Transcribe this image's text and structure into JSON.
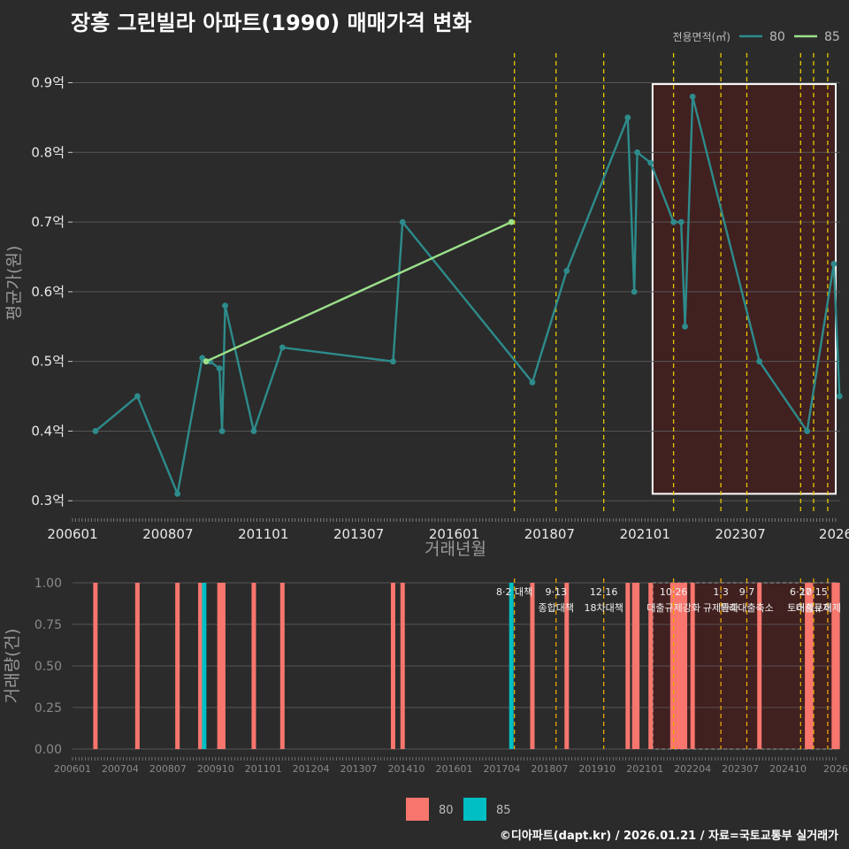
{
  "title": "장흥 그린빌라 아파트(1990) 매매가격 변화",
  "credit": "©디아파트(dapt.kr) / 2026.01.21 / 자료=국토교통부 실거래가",
  "colors": {
    "s80": "#2e8b8b",
    "s85": "#9be08a",
    "bar80": "#f8766d",
    "bar85": "#00bfc4",
    "policy": "#e8c800",
    "highlight": "#4a1e1e"
  },
  "chart_data": [
    {
      "type": "line",
      "title": "장흥 그린빌라 아파트(1990) 매매가격 변화",
      "xlabel": "거래년월",
      "ylabel": "평균가(원)",
      "ylim": [
        0.28,
        0.94
      ],
      "y_ticks": [
        0.3,
        0.4,
        0.5,
        0.6,
        0.7,
        0.8,
        0.9
      ],
      "y_tick_labels": [
        "0.3억",
        "0.4억",
        "0.5억",
        "0.6억",
        "0.7억",
        "0.8억",
        "0.9억"
      ],
      "x_ticks": [
        2006.0,
        2008.5,
        2011.0,
        2013.5,
        2016.0,
        2018.5,
        2021.0,
        2023.5,
        2026.0
      ],
      "x_tick_labels": [
        "200601",
        "200807",
        "201101",
        "201307",
        "201601",
        "201807",
        "202101",
        "202307",
        "2026"
      ],
      "legend_title": "전용면적(㎡)",
      "highlight": {
        "x0": 2021.2,
        "x1": 2026.0,
        "y0": 0.31,
        "y1": 0.898
      },
      "policy_lines": [
        2017.58,
        2018.67,
        2019.92,
        2021.75,
        2022.99,
        2023.67,
        2025.08,
        2025.42,
        2025.79
      ],
      "series": [
        {
          "name": "80",
          "points": [
            [
              2006.6,
              0.4
            ],
            [
              2007.7,
              0.45
            ],
            [
              2008.75,
              0.31
            ],
            [
              2009.4,
              0.505
            ],
            [
              2009.6,
              0.5
            ],
            [
              2009.85,
              0.49
            ],
            [
              2009.92,
              0.4
            ],
            [
              2010.0,
              0.58
            ],
            [
              2010.75,
              0.4
            ],
            [
              2011.5,
              0.52
            ],
            [
              2014.4,
              0.5
            ],
            [
              2014.65,
              0.7
            ],
            [
              2018.05,
              0.47
            ],
            [
              2018.95,
              0.63
            ],
            [
              2020.55,
              0.85
            ],
            [
              2020.72,
              0.6
            ],
            [
              2020.8,
              0.8
            ],
            [
              2021.15,
              0.785
            ],
            [
              2021.75,
              0.7
            ],
            [
              2021.95,
              0.7
            ],
            [
              2022.05,
              0.55
            ],
            [
              2022.25,
              0.88
            ],
            [
              2024.0,
              0.5
            ],
            [
              2025.25,
              0.4
            ],
            [
              2025.95,
              0.64
            ],
            [
              2026.1,
              0.45
            ]
          ]
        },
        {
          "name": "85",
          "points": [
            [
              2009.5,
              0.5
            ],
            [
              2017.5,
              0.7
            ]
          ]
        }
      ]
    },
    {
      "type": "bar",
      "xlabel": "",
      "ylabel": "거래량(건)",
      "ylim": [
        0,
        1.0
      ],
      "y_ticks": [
        0,
        0.25,
        0.5,
        0.75,
        1.0
      ],
      "y_tick_labels": [
        "0.00",
        "0.25",
        "0.50",
        "0.75",
        "1.00"
      ],
      "x_tick_labels": [
        "200601",
        "200704",
        "200807",
        "200910",
        "201101",
        "201204",
        "201307",
        "201410",
        "201601",
        "201704",
        "201807",
        "201910",
        "202101",
        "202204",
        "202307",
        "202410",
        "2026"
      ],
      "highlight": {
        "x0": 2021.2,
        "x1": 2026.0
      },
      "policy_lines": [
        2017.58,
        2018.67,
        2019.92,
        2021.75,
        2022.99,
        2023.67,
        2025.08,
        2025.42,
        2025.79
      ],
      "policy_labels": [
        {
          "x": 2017.58,
          "line1": "8·2 대책",
          "line2": ""
        },
        {
          "x": 2018.67,
          "line1": "9·13",
          "line2": "종합대책"
        },
        {
          "x": 2019.92,
          "line1": "12·16",
          "line2": "18차대책"
        },
        {
          "x": 2021.75,
          "line1": "10·26",
          "line2": "대출규제강화"
        },
        {
          "x": 2022.99,
          "line1": "1·3",
          "line2": "규제완화"
        },
        {
          "x": 2023.67,
          "line1": "9·7",
          "line2": "특례대출축소"
        },
        {
          "x": 2025.08,
          "line1": "6·27",
          "line2": "토허제"
        },
        {
          "x": 2025.42,
          "line1": "10·15",
          "line2": "대출규제"
        },
        {
          "x": 2025.79,
          "line1": "",
          "line2": "토허제"
        }
      ],
      "series": [
        {
          "name": "80",
          "x": [
            2006.6,
            2007.7,
            2008.75,
            2009.35,
            2009.85,
            2009.95,
            2010.75,
            2011.5,
            2014.4,
            2014.65,
            2018.05,
            2018.95,
            2020.55,
            2020.72,
            2020.8,
            2021.15,
            2021.72,
            2021.78,
            2021.88,
            2021.95,
            2022.05,
            2022.25,
            2024.0,
            2025.25,
            2025.35,
            2025.95,
            2026.05
          ],
          "values": [
            1,
            1,
            1,
            1,
            1,
            1,
            1,
            1,
            1,
            1,
            1,
            1,
            1,
            1,
            1,
            1,
            1,
            1,
            1,
            1,
            1,
            1,
            1,
            1,
            1,
            1,
            1
          ]
        },
        {
          "name": "85",
          "x": [
            2009.45,
            2017.5
          ],
          "values": [
            1,
            1
          ]
        }
      ]
    }
  ]
}
